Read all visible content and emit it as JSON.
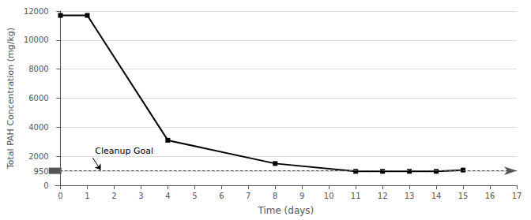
{
  "chart_data": {
    "type": "line",
    "x": [
      0,
      1,
      4,
      8,
      11,
      12,
      13,
      14,
      15
    ],
    "values": [
      11700,
      11700,
      3100,
      1500,
      960,
      960,
      960,
      960,
      1050
    ],
    "color": "#000000",
    "marker": "square",
    "xlabel": "Time (days)",
    "ylabel": "Total PAH Concentration (mg/kg)",
    "xlim": [
      -0.2,
      17
    ],
    "ylim": [
      0,
      12000
    ],
    "xticks": [
      0,
      1,
      2,
      3,
      4,
      5,
      6,
      7,
      8,
      9,
      10,
      11,
      12,
      13,
      14,
      15,
      16,
      17
    ],
    "yticks": [
      0,
      950,
      2000,
      4000,
      6000,
      8000,
      10000,
      12000
    ],
    "grid": true,
    "hline": {
      "y": 1000,
      "color": "#555555",
      "line_style": "dashed"
    },
    "annotations": [
      {
        "text": "Cleanup Goal",
        "x": 1.2,
        "y": 1900,
        "arrow_x": 1.5,
        "arrow_y": 1050
      }
    ]
  }
}
